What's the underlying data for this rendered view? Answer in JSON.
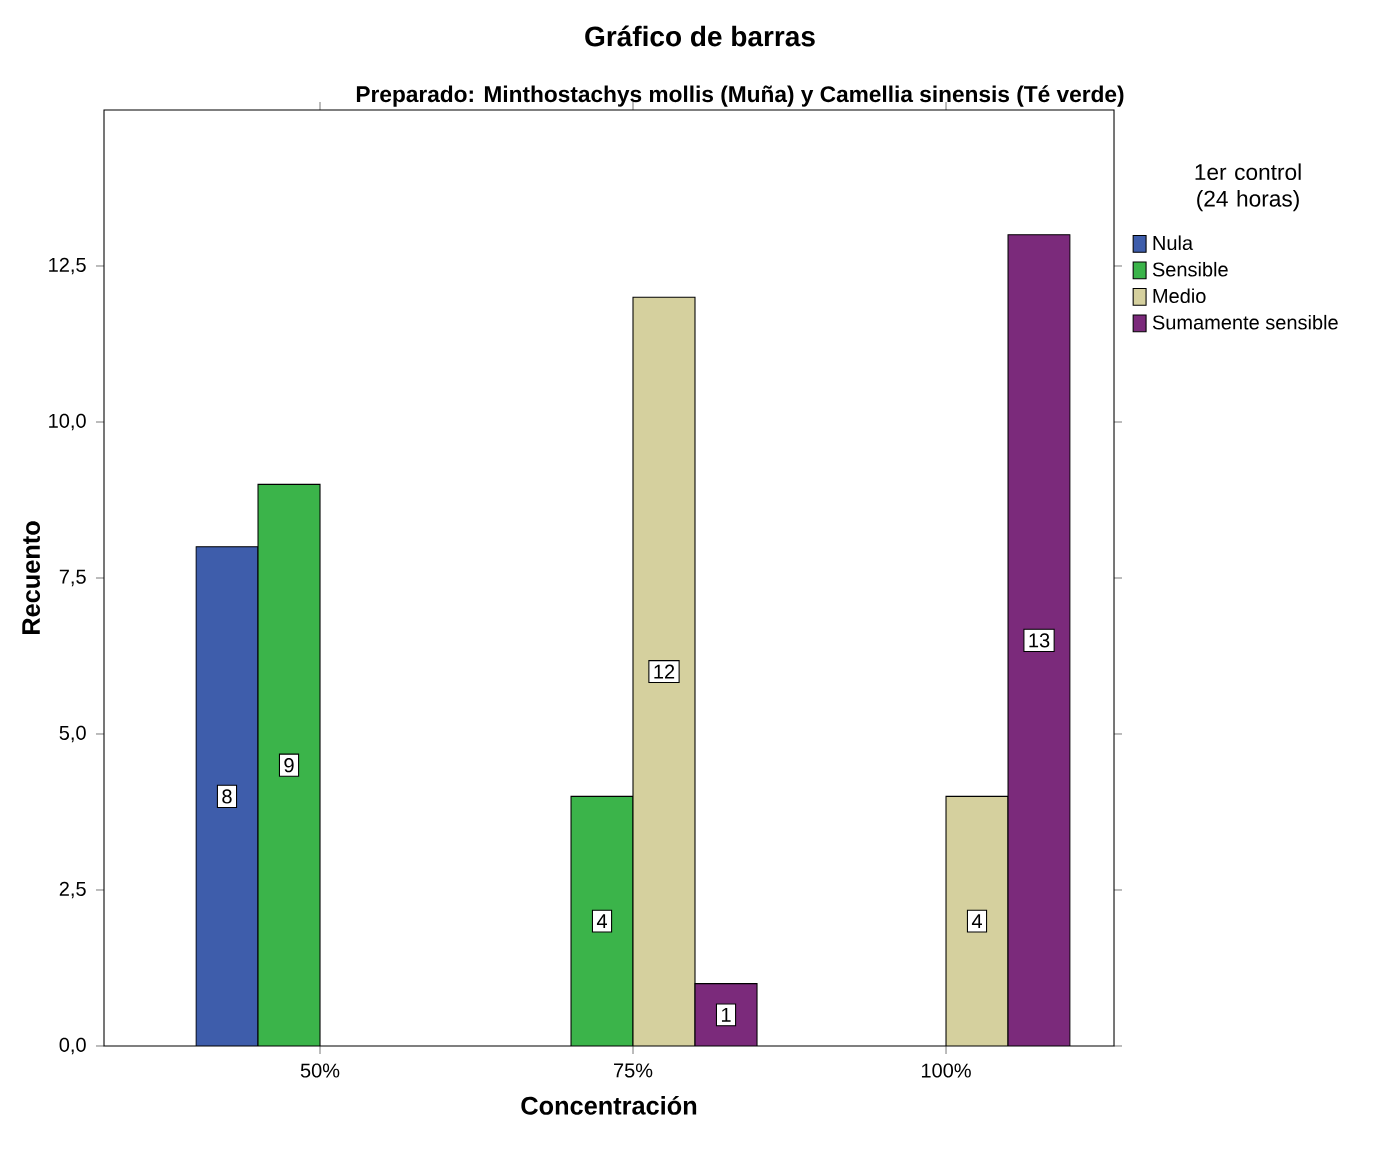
{
  "chart_data": {
    "type": "bar",
    "title": "Gráfico de barras",
    "subtitle": "Preparado: Minthostachys mollis (Muña) y Camellia sinensis (Té verde)",
    "xlabel": "Concentración",
    "ylabel": "Recuento",
    "legend_title": "1er control (24 horas)",
    "categories": [
      "50%",
      "75%",
      "100%"
    ],
    "series": [
      {
        "name": "Nula",
        "color": "#3e5dab",
        "values": [
          8,
          null,
          null
        ]
      },
      {
        "name": "Sensible",
        "color": "#3bb44a",
        "values": [
          9,
          4,
          null
        ]
      },
      {
        "name": "Medio",
        "color": "#d5d09e",
        "values": [
          null,
          12,
          4
        ]
      },
      {
        "name": "Sumamente sensible",
        "color": "#7b2a7b",
        "values": [
          null,
          1,
          13
        ]
      }
    ],
    "ylim": [
      0,
      15
    ],
    "yticks": [
      {
        "value": 0,
        "label": "0,0"
      },
      {
        "value": 2.5,
        "label": "2,5"
      },
      {
        "value": 5,
        "label": "5,0"
      },
      {
        "value": 7.5,
        "label": "7,5"
      },
      {
        "value": 10,
        "label": "10,0"
      },
      {
        "value": 12.5,
        "label": "12,5"
      }
    ],
    "data_labels": true,
    "legend": "right",
    "grid": false
  }
}
